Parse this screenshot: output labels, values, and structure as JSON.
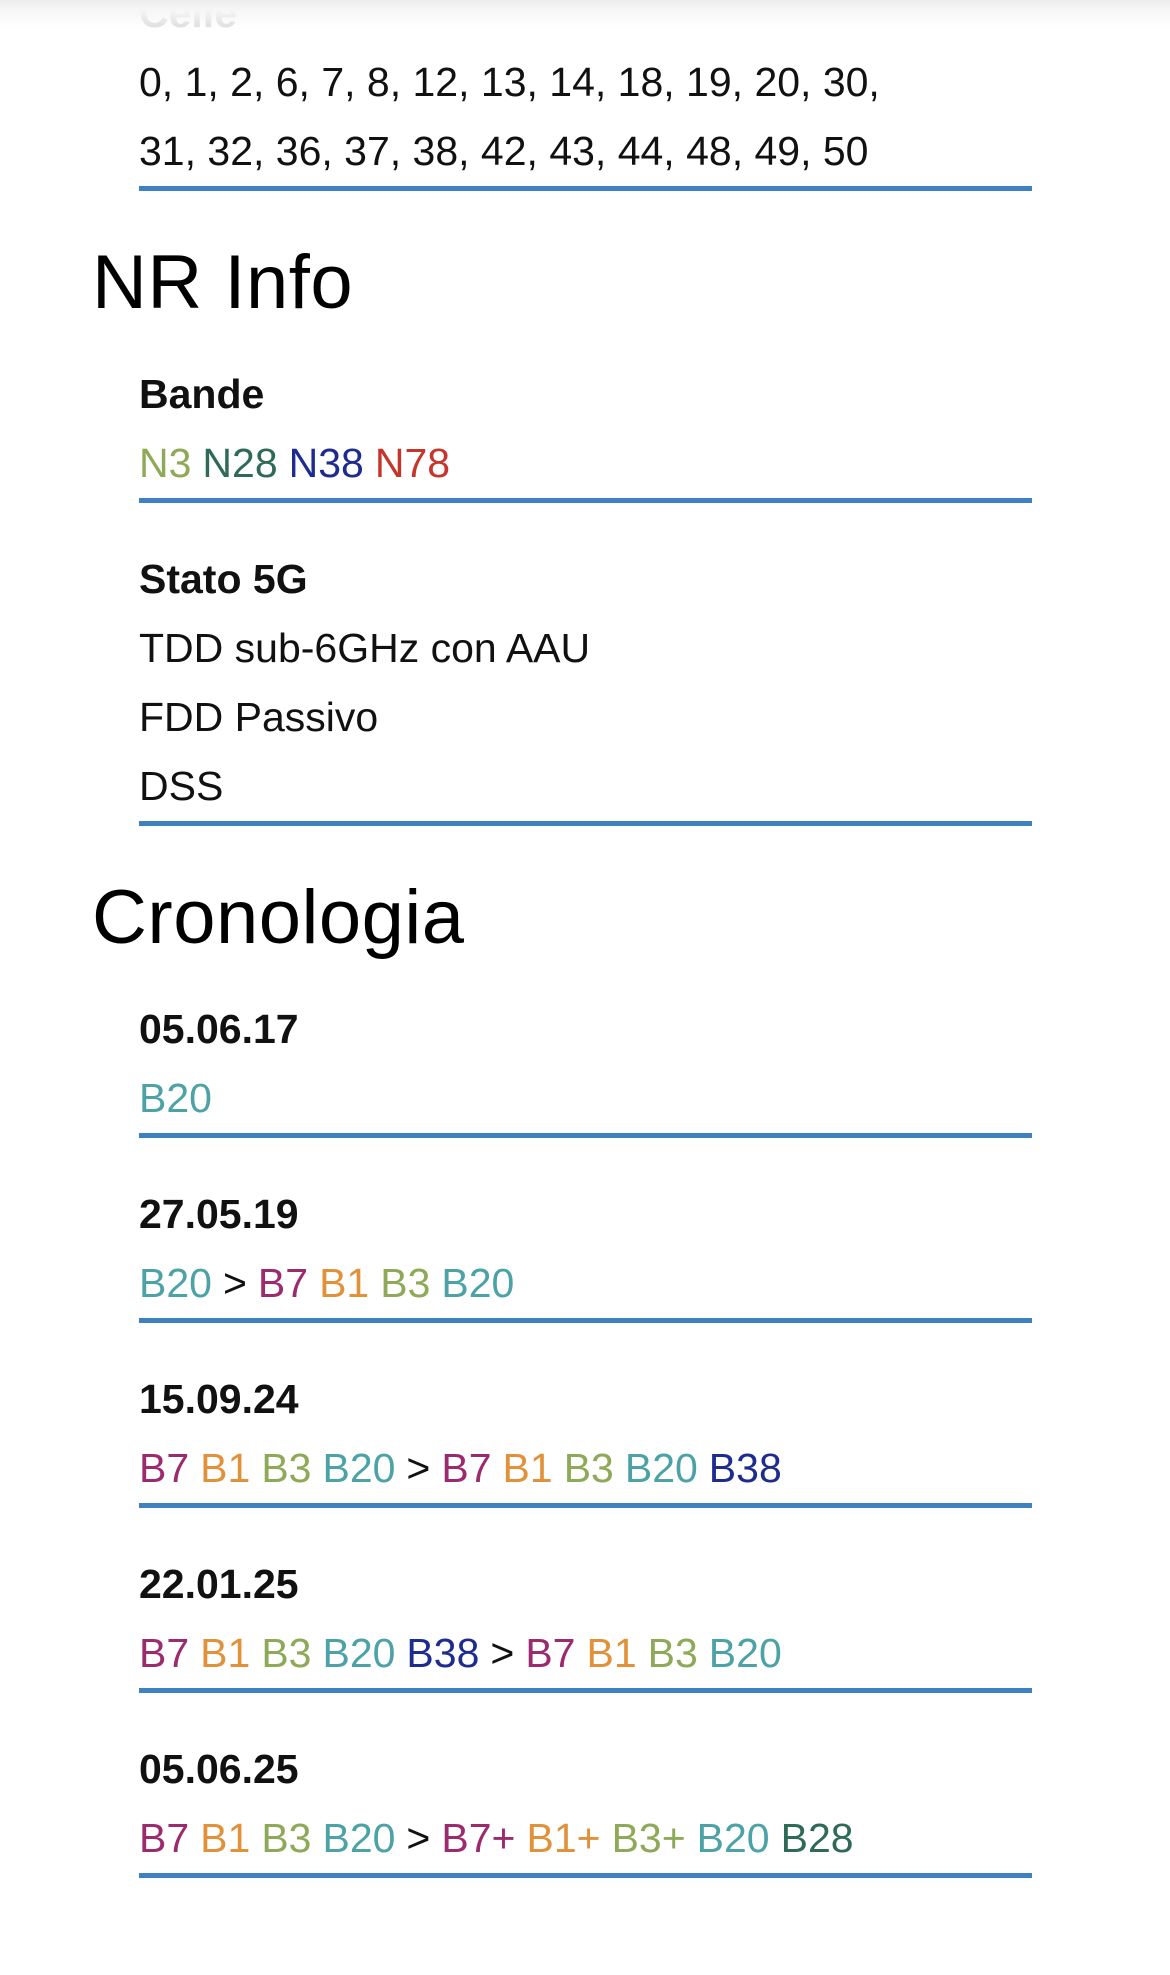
{
  "colors": {
    "B7": "#9c2a6e",
    "B1": "#e0913a",
    "B3": "#8ea957",
    "B20": "#4da2a6",
    "B38": "#1e2b8f",
    "B28": "#2f6a56",
    "N3": "#8ea957",
    "N28": "#2f6a56",
    "N38": "#1e2b8f",
    "N78": "#c6352b",
    "separator": "#111111",
    "underline": "#3f80be"
  },
  "celle": {
    "label": "Celle",
    "lines": [
      "0, 1, 2, 6, 7, 8, 12, 13, 14, 18, 19, 20, 30,",
      "31, 32, 36, 37, 38, 42, 43, 44, 48, 49, 50"
    ]
  },
  "nr_info": {
    "title": "NR Info",
    "bande": {
      "label": "Bande",
      "tokens": [
        "N3",
        "N28",
        "N38",
        "N78"
      ]
    },
    "stato": {
      "label": "Stato 5G",
      "lines": [
        "TDD sub-6GHz con AAU",
        "FDD Passivo",
        "DSS"
      ]
    }
  },
  "cronologia": {
    "title": "Cronologia",
    "entries": [
      {
        "date": "05.06.17",
        "tokens": [
          "B20"
        ]
      },
      {
        "date": "27.05.19",
        "tokens": [
          "B20",
          ">",
          "B7",
          "B1",
          "B3",
          "B20"
        ]
      },
      {
        "date": "15.09.24",
        "tokens": [
          "B7",
          "B1",
          "B3",
          "B20",
          ">",
          "B7",
          "B1",
          "B3",
          "B20",
          "B38"
        ]
      },
      {
        "date": "22.01.25",
        "tokens": [
          "B7",
          "B1",
          "B3",
          "B20",
          "B38",
          ">",
          "B7",
          "B1",
          "B3",
          "B20"
        ]
      },
      {
        "date": "05.06.25",
        "tokens": [
          "B7",
          "B1",
          "B3",
          "B20",
          ">",
          "B7+",
          "B1+",
          "B3+",
          "B20",
          "B28"
        ]
      }
    ]
  }
}
